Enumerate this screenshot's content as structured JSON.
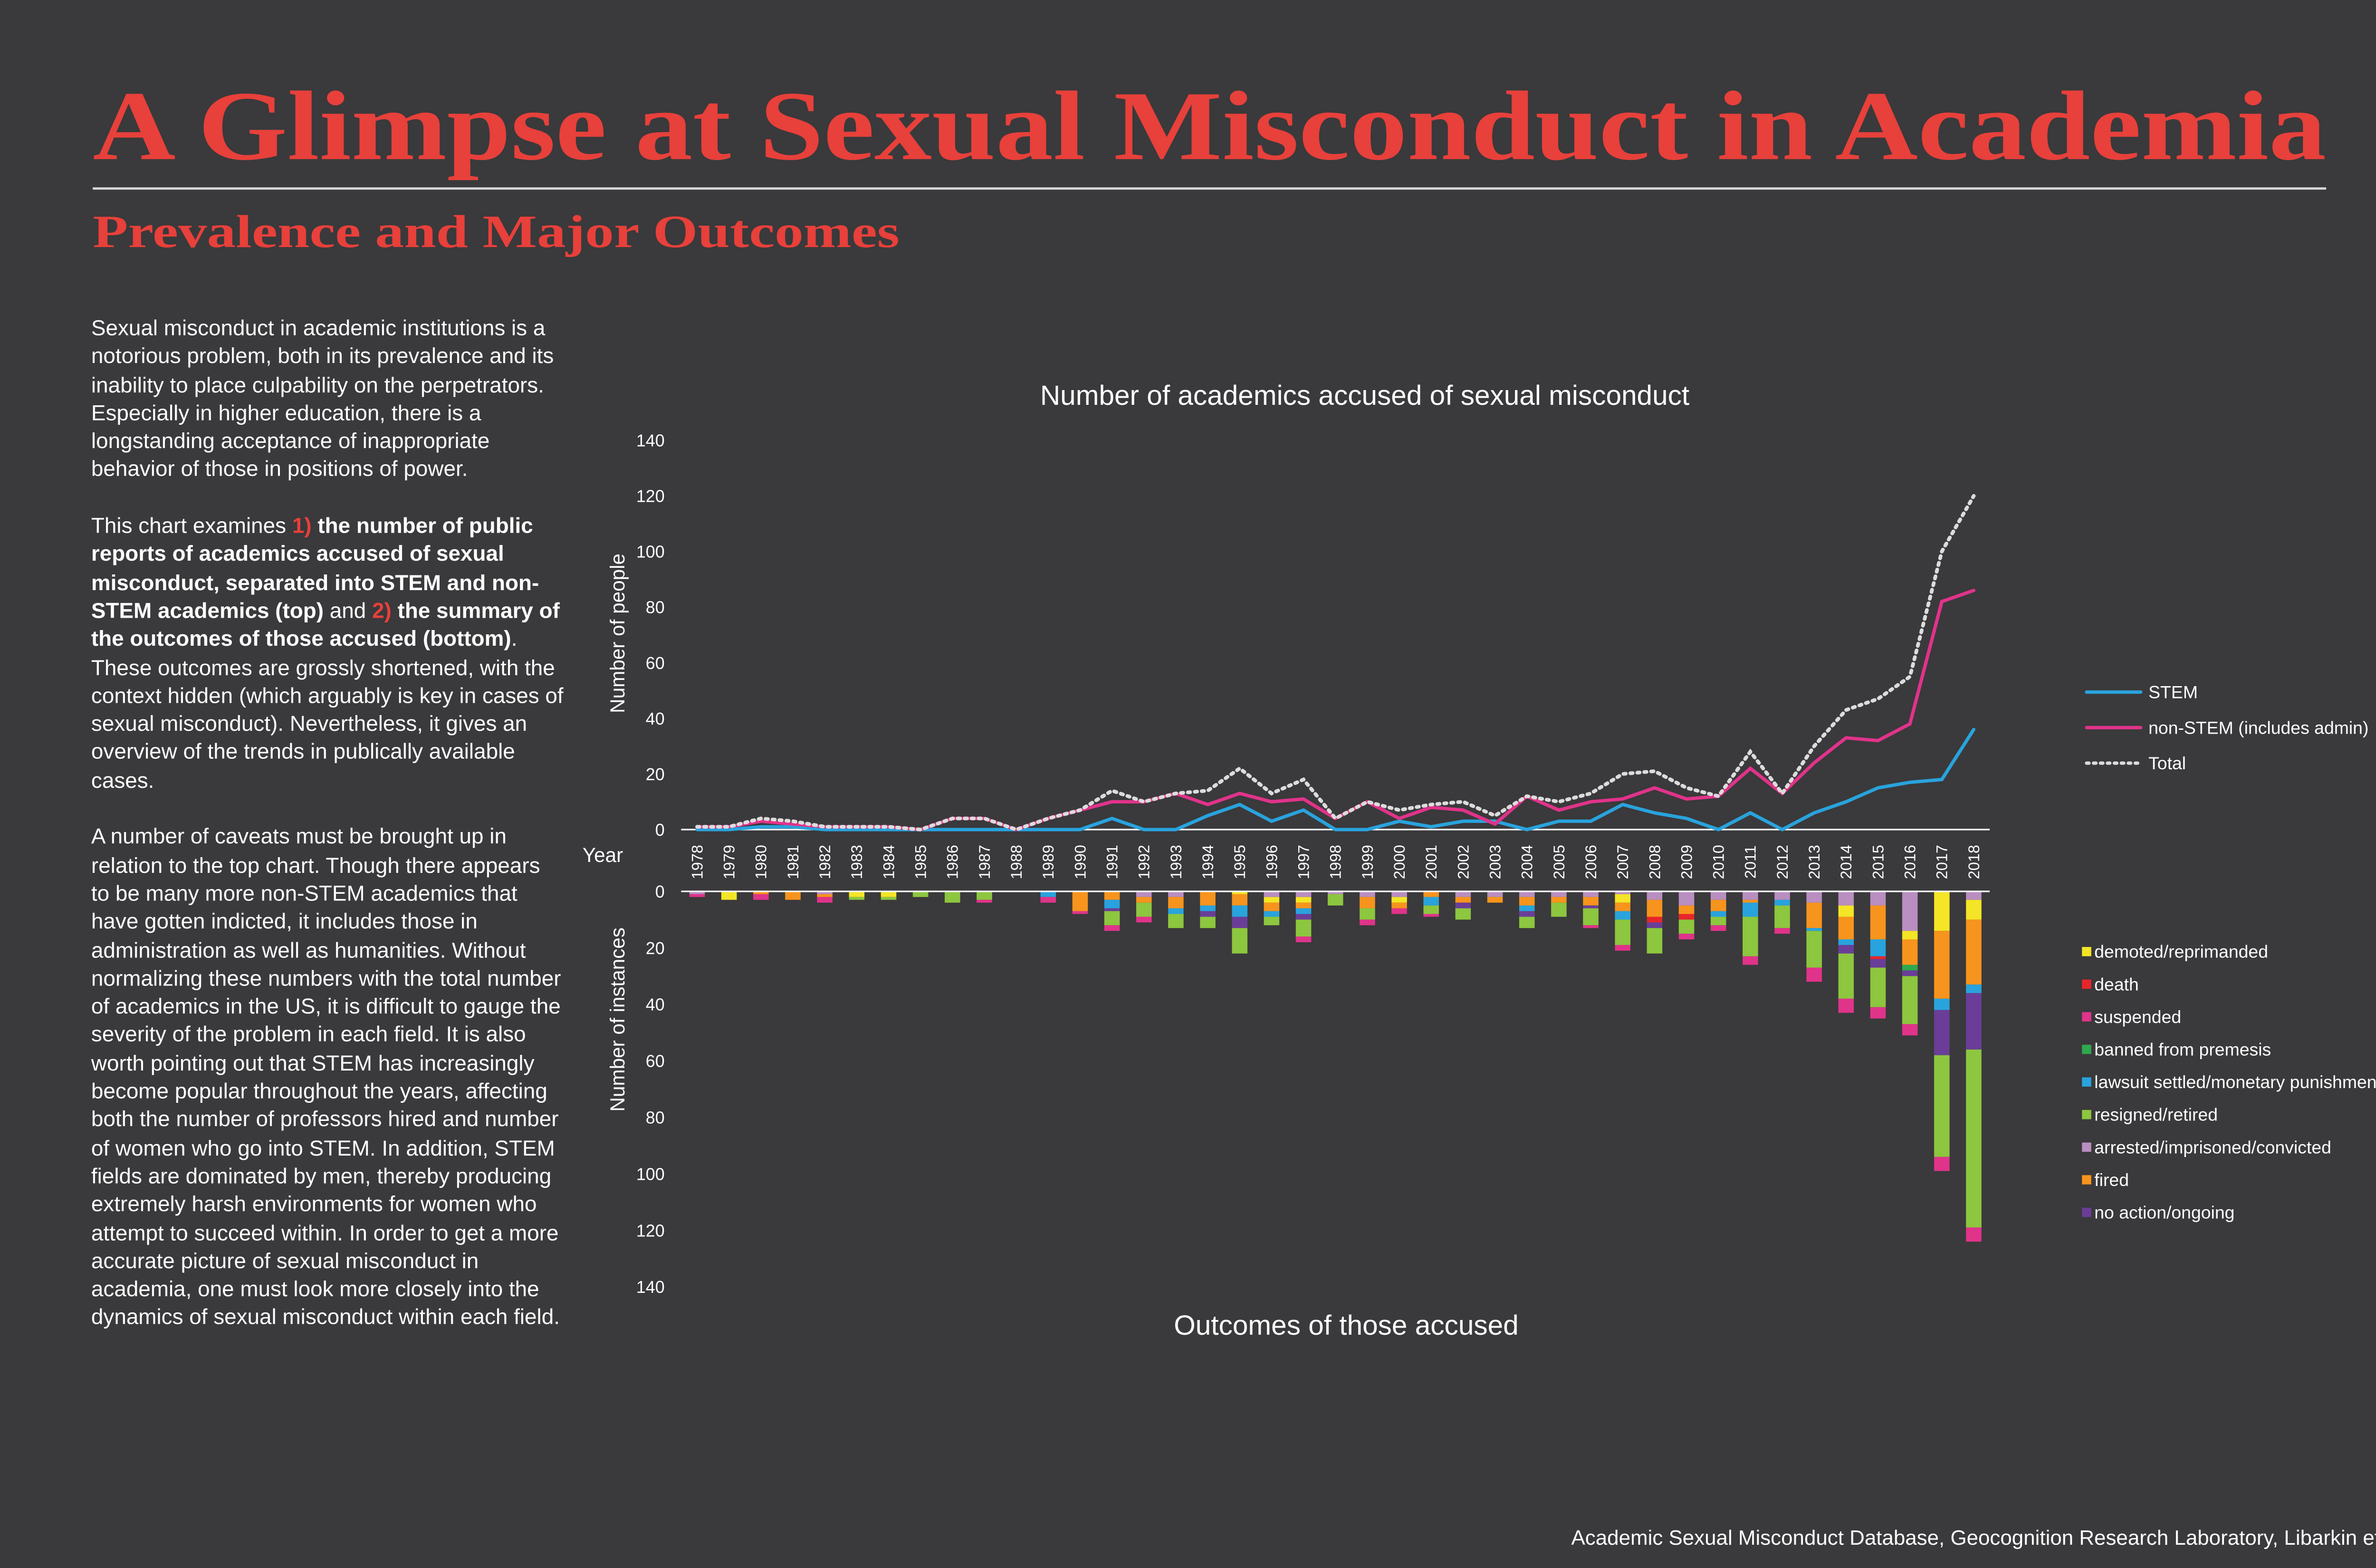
{
  "header": {
    "title": "A Glimpse at Sexual Misconduct in Academia",
    "subtitle": "Prevalence and Major Outcomes"
  },
  "text": {
    "paragraph_1": "Sexual misconduct in academic institutions is a notorious problem, both in its prevalence and its inability to place culpability on the perpetrators. Especially in higher education, there is a longstanding acceptance of inappropriate behavior of those in positions of power.",
    "paragraph_2": [
      "This chart examines ",
      "1)",
      " the number of public reports of academics accused of sexual misconduct, separated into STEM and non-STEM academics (top)",
      " and ",
      "2)",
      " the summary of the outcomes of those accused (bottom)",
      ". These outcomes are grossly shortened, with the context hidden (which arguably is key in cases of sexual misconduct). Nevertheless, it gives an overview of the trends in publically available cases."
    ],
    "paragraph_3": "A number of caveats must be brought up in relation to the top chart. Though there appears to be many more non-STEM academics that have gotten indicted, it includes those in administration as well as humanities. Without normalizing these numbers with the total number of academics in the US, it is difficult to gauge the severity of the problem in each field. It is also worth pointing out that STEM has increasingly become popular throughout the years, affecting both the number of professors hired and number of women who go into STEM. In addition, STEM fields are dominated by men, thereby producing extremely harsh environments for women who attempt to succeed within. In order to get a more accurate picture  of sexual misconduct in academia, one must look more closely into the dynamics of sexual misconduct within each field."
  },
  "chart_data": [
    {
      "type": "line",
      "title": "Number of academics accused of sexual misconduct",
      "y_label": "Number of people",
      "x_label": "Year",
      "x": [
        1978,
        1979,
        1980,
        1981,
        1982,
        1983,
        1984,
        1985,
        1986,
        1987,
        1988,
        1989,
        1990,
        1991,
        1992,
        1993,
        1994,
        1995,
        1996,
        1997,
        1998,
        1999,
        2000,
        2001,
        2002,
        2003,
        2004,
        2005,
        2006,
        2007,
        2008,
        2009,
        2010,
        2011,
        2012,
        2013,
        2014,
        2015,
        2016,
        2017,
        2018
      ],
      "xlim": [
        1977.5,
        2018.5
      ],
      "ylim": [
        0,
        140
      ],
      "yticks": [
        0,
        20,
        40,
        60,
        80,
        100,
        120,
        140
      ],
      "legend": "right",
      "series": [
        {
          "name": "STEM",
          "color": "#29a3dd",
          "style": "solid",
          "values": [
            0,
            0,
            1,
            1,
            0,
            0,
            0,
            0,
            0,
            0,
            0,
            0,
            0,
            4,
            0,
            0,
            5,
            9,
            3,
            7,
            0,
            0,
            3,
            1,
            3,
            3,
            0,
            3,
            3,
            9,
            6,
            4,
            0,
            6,
            0,
            6,
            10,
            15,
            17,
            18,
            36
          ]
        },
        {
          "name": "non-STEM (includes admin)",
          "color": "#e0338a",
          "style": "solid",
          "values": [
            1,
            1,
            3,
            2,
            1,
            1,
            1,
            0,
            4,
            4,
            0,
            4,
            7,
            10,
            10,
            13,
            9,
            13,
            10,
            11,
            4,
            10,
            4,
            8,
            7,
            2,
            12,
            7,
            10,
            11,
            15,
            11,
            12,
            22,
            13,
            24,
            33,
            32,
            38,
            82,
            86
          ]
        },
        {
          "name": "Total",
          "color": "#dcdcdc",
          "style": "dotted",
          "values": [
            1,
            1,
            4,
            3,
            1,
            1,
            1,
            0,
            4,
            4,
            0,
            4,
            7,
            14,
            10,
            13,
            14,
            22,
            13,
            18,
            4,
            10,
            7,
            9,
            10,
            5,
            12,
            10,
            13,
            20,
            21,
            15,
            12,
            28,
            13,
            30,
            43,
            47,
            55,
            100,
            120
          ]
        }
      ]
    },
    {
      "type": "stacked_bar",
      "title": "Outcomes of those accused",
      "y_label": "Number of instances",
      "y_inverted": true,
      "x": [
        1978,
        1979,
        1980,
        1981,
        1982,
        1983,
        1984,
        1985,
        1986,
        1987,
        1988,
        1989,
        1990,
        1991,
        1992,
        1993,
        1994,
        1995,
        1996,
        1997,
        1998,
        1999,
        2000,
        2001,
        2002,
        2003,
        2004,
        2005,
        2006,
        2007,
        2008,
        2009,
        2010,
        2011,
        2012,
        2013,
        2014,
        2015,
        2016,
        2017,
        2018
      ],
      "xlim": [
        1977.5,
        2018.5
      ],
      "ylim": [
        0,
        140
      ],
      "yticks": [
        0,
        20,
        40,
        60,
        80,
        100,
        120,
        140
      ],
      "legend": "right",
      "series": [
        {
          "name": "demoted/reprimanded",
          "color": "#f4e526",
          "values": [
            0,
            3,
            0,
            0,
            0,
            2,
            2,
            0,
            0,
            0,
            0,
            0,
            0,
            0,
            0,
            0,
            0,
            1,
            2,
            2,
            0,
            0,
            2,
            0,
            0,
            0,
            0,
            0,
            0,
            3,
            0,
            0,
            0,
            0,
            0,
            0,
            4,
            0,
            3,
            14,
            7
          ]
        },
        {
          "name": "death",
          "color": "#e8262a",
          "values": [
            0,
            0,
            0,
            0,
            0,
            0,
            0,
            0,
            0,
            0,
            0,
            0,
            0,
            0,
            0,
            0,
            0,
            0,
            0,
            0,
            0,
            0,
            0,
            0,
            0,
            0,
            0,
            0,
            0,
            0,
            2,
            2,
            0,
            0,
            0,
            0,
            0,
            1,
            0,
            0,
            0
          ]
        },
        {
          "name": "suspended",
          "color": "#e0338a",
          "values": [
            1,
            0,
            2,
            0,
            2,
            0,
            0,
            0,
            0,
            1,
            0,
            2,
            1,
            2,
            2,
            0,
            0,
            0,
            0,
            2,
            0,
            2,
            2,
            1,
            0,
            0,
            0,
            0,
            1,
            2,
            0,
            2,
            2,
            3,
            2,
            5,
            5,
            4,
            4,
            5,
            5
          ]
        },
        {
          "name": "banned from premesis",
          "color": "#2fa84f",
          "values": [
            0,
            0,
            0,
            0,
            0,
            0,
            0,
            0,
            0,
            0,
            0,
            0,
            0,
            0,
            0,
            0,
            0,
            0,
            0,
            0,
            0,
            0,
            0,
            0,
            0,
            0,
            0,
            0,
            0,
            0,
            0,
            0,
            0,
            0,
            0,
            0,
            0,
            0,
            2,
            0,
            0
          ]
        },
        {
          "name": "lawsuit settled/monetary punishment",
          "color": "#29a3dd",
          "values": [
            0,
            0,
            0,
            0,
            0,
            0,
            0,
            0,
            0,
            0,
            0,
            2,
            0,
            3,
            0,
            2,
            2,
            4,
            2,
            2,
            0,
            0,
            0,
            3,
            0,
            0,
            2,
            0,
            0,
            3,
            0,
            0,
            2,
            5,
            2,
            1,
            2,
            6,
            0,
            4,
            3
          ]
        },
        {
          "name": "resigned/retired",
          "color": "#8dc63f",
          "values": [
            0,
            0,
            0,
            0,
            0,
            1,
            1,
            2,
            4,
            3,
            0,
            0,
            0,
            5,
            5,
            5,
            4,
            9,
            3,
            6,
            4,
            4,
            0,
            3,
            4,
            0,
            4,
            5,
            6,
            9,
            9,
            5,
            3,
            14,
            8,
            13,
            16,
            14,
            17,
            36,
            63
          ]
        },
        {
          "name": "arrested/imprisoned/convicted",
          "color": "#b98ec0",
          "values": [
            1,
            0,
            0,
            0,
            1,
            0,
            0,
            0,
            0,
            0,
            0,
            0,
            0,
            0,
            2,
            2,
            0,
            0,
            2,
            2,
            1,
            2,
            2,
            0,
            2,
            2,
            2,
            2,
            2,
            1,
            3,
            5,
            3,
            3,
            3,
            4,
            5,
            5,
            14,
            0,
            3
          ]
        },
        {
          "name": "fired",
          "color": "#f7941d",
          "values": [
            0,
            0,
            1,
            3,
            1,
            0,
            0,
            0,
            0,
            0,
            0,
            0,
            7,
            3,
            2,
            4,
            5,
            4,
            3,
            2,
            0,
            4,
            2,
            2,
            2,
            2,
            3,
            2,
            3,
            3,
            6,
            3,
            4,
            1,
            0,
            9,
            8,
            12,
            9,
            24,
            23
          ]
        },
        {
          "name": "no action/ongoing",
          "color": "#6a3e98",
          "values": [
            0,
            0,
            0,
            0,
            0,
            0,
            0,
            0,
            0,
            0,
            0,
            0,
            0,
            1,
            0,
            0,
            2,
            4,
            0,
            2,
            0,
            0,
            0,
            0,
            2,
            0,
            2,
            0,
            1,
            0,
            2,
            0,
            0,
            0,
            0,
            0,
            3,
            3,
            2,
            16,
            20
          ]
        }
      ]
    }
  ],
  "source": "Academic Sexual Misconduct Database, Geocognition Research Laboratory, Libarkin et al."
}
